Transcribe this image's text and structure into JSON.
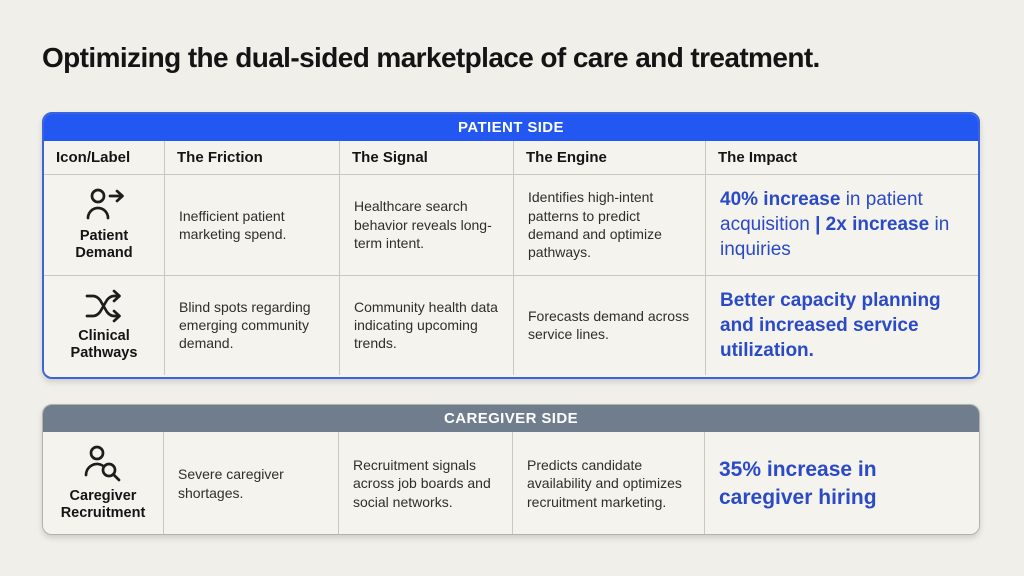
{
  "page": {
    "title": "Optimizing the dual-sided marketplace of care and treatment."
  },
  "colors": {
    "background": "#f0efe9",
    "patient_header": "#2257f2",
    "patient_border": "#3a63dd",
    "caregiver_header": "#6f7d8c",
    "impact_text": "#2b4ac7",
    "cell_background": "#f4f3ed",
    "grid_line": "#c9c8c0"
  },
  "columns": [
    "Icon/Label",
    "The Friction",
    "The Signal",
    "The Engine",
    "The Impact"
  ],
  "patient": {
    "section_label": "PATIENT SIDE",
    "rows": [
      {
        "icon": "person-arrow-right-icon",
        "label": "Patient Demand",
        "friction": "Inefficient patient marketing spend.",
        "signal": "Healthcare search behavior reveals long-term intent.",
        "engine": "Identifies high-intent patterns to predict demand and optimize pathways.",
        "impact_segments": [
          {
            "text": "40% increase",
            "bold": true
          },
          {
            "text": " in patient acquisition ",
            "bold": false
          },
          {
            "text": "| 2x increase",
            "bold": true
          },
          {
            "text": " in inquiries",
            "bold": false
          }
        ]
      },
      {
        "icon": "shuffle-icon",
        "label": "Clinical Pathways",
        "friction": "Blind spots regarding emerging community demand.",
        "signal": "Community health data indicating upcoming trends.",
        "engine": "Forecasts demand across service lines.",
        "impact_segments": [
          {
            "text": "Better capacity planning and increased service utilization.",
            "bold": true
          }
        ]
      }
    ]
  },
  "caregiver": {
    "section_label": "CAREGIVER SIDE",
    "rows": [
      {
        "icon": "person-search-icon",
        "label": "Caregiver Recruitment",
        "friction": "Severe caregiver shortages.",
        "signal": "Recruitment signals across job boards and social networks.",
        "engine": "Predicts candidate availability and optimizes recruitment marketing.",
        "impact_segments": [
          {
            "text": "35% increase in caregiver hiring",
            "bold": true
          }
        ]
      }
    ]
  }
}
